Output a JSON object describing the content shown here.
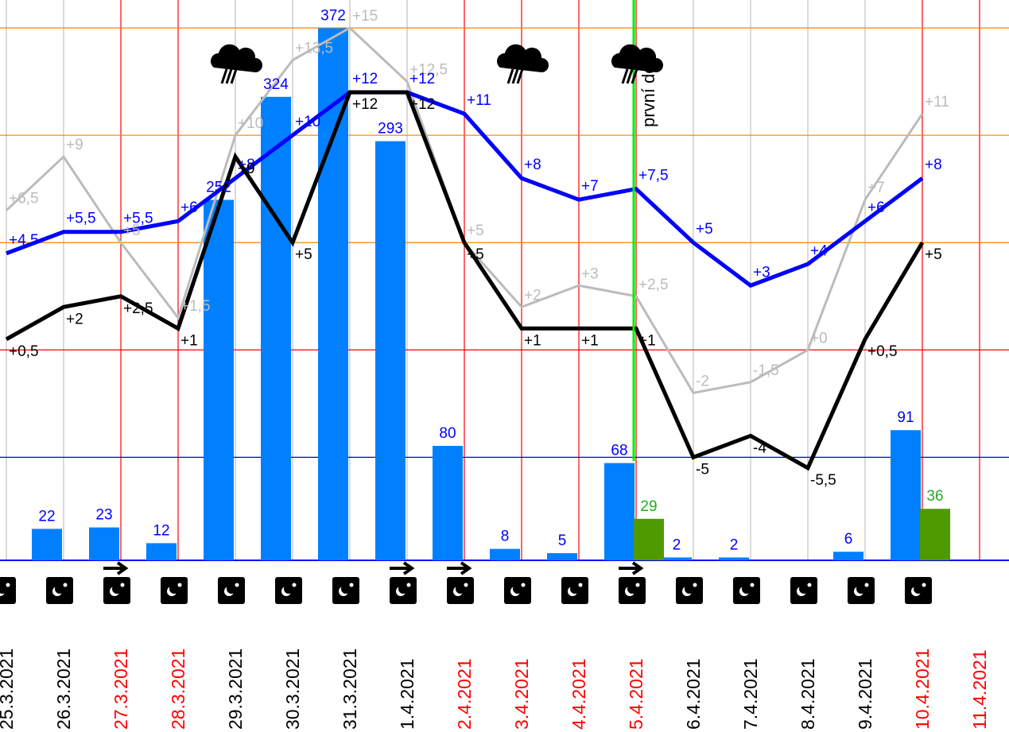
{
  "chart_data": {
    "type": "bar-line",
    "categories": [
      "25.3.2021",
      "26.3.2021",
      "27.3.2021",
      "28.3.2021",
      "29.3.2021",
      "30.3.2021",
      "31.3.2021",
      "1.4.2021",
      "2.4.2021",
      "3.4.2021",
      "4.4.2021",
      "5.4.2021",
      "6.4.2021",
      "7.4.2021",
      "8.4.2021",
      "9.4.2021",
      "10.4.2021",
      "11.4.2021"
    ],
    "category_colors": [
      "#000000",
      "#000000",
      "#ff0000",
      "#ff0000",
      "#000000",
      "#000000",
      "#000000",
      "#000000",
      "#ff0000",
      "#ff0000",
      "#ff0000",
      "#ff0000",
      "#000000",
      "#000000",
      "#000000",
      "#000000",
      "#ff0000",
      "#ff0000"
    ],
    "ylim": [
      -9.8,
      16.3
    ],
    "yticks": [
      -5,
      0,
      5,
      10,
      15
    ],
    "grid_colors": [
      "#0000ff",
      "#ff0000",
      "#ff8000",
      "#ff8000",
      "#ff8000"
    ],
    "y2lim": [
      0,
      391.7
    ],
    "series": [
      {
        "type": "bar",
        "axis": "y2",
        "color": "#0080ff",
        "label_color": "#0000ff",
        "offset": -1,
        "values": [
          null,
          22,
          23,
          12,
          252,
          324,
          372,
          293,
          80,
          8,
          5,
          68,
          2,
          2,
          null,
          6,
          91,
          null
        ]
      },
      {
        "type": "bar",
        "axis": "y2",
        "color": "#4e9a00",
        "label_color": "#22aa22",
        "offset": 0,
        "values": [
          null,
          null,
          null,
          null,
          null,
          null,
          null,
          null,
          null,
          null,
          null,
          29,
          null,
          null,
          null,
          null,
          36,
          null
        ]
      },
      {
        "type": "line",
        "color": "#bbbbbb",
        "width": 3,
        "label_dy": -14,
        "values": [
          6.5,
          9,
          5,
          1.5,
          10,
          13.5,
          15,
          12.5,
          5,
          2,
          3,
          2.5,
          -2,
          -1.5,
          0,
          7,
          11,
          null
        ],
        "value_labels": [
          "+6,5",
          "+9",
          "+5",
          "+1,5",
          "+10",
          "+13,5",
          "+15",
          "+12,5",
          "+5",
          "+2",
          "+3",
          "+2,5",
          "-2",
          "-1,5",
          "+0",
          "+7",
          "+11",
          null
        ]
      },
      {
        "type": "line",
        "color": "#0000ff",
        "width": 5,
        "label_dy": -16,
        "values": [
          4.5,
          5.5,
          5.5,
          6,
          8,
          10,
          12,
          12,
          11,
          8,
          7,
          7.5,
          5,
          3,
          4,
          6,
          8,
          null
        ],
        "value_labels": [
          "+4,5",
          "+5,5",
          "+5,5",
          "+6",
          "+8",
          "+10",
          "+12",
          "+12",
          "+11",
          "+8",
          "+7",
          "+7,5",
          "+5",
          "+3",
          "+4",
          "+6",
          "+8",
          null
        ]
      },
      {
        "type": "line",
        "color": "#000000",
        "width": 5,
        "label_dy": 16,
        "values": [
          0.5,
          2,
          2.5,
          1,
          9,
          5,
          12,
          12,
          5,
          1,
          1,
          1,
          -5,
          -4,
          -5.5,
          0.5,
          5,
          null
        ],
        "value_labels": [
          "+0,5",
          "+2",
          "+2,5",
          "+1",
          "+9",
          "+5",
          "+12",
          "+12",
          "+5",
          "+1",
          "+1",
          "+1",
          "-5",
          "-4",
          "-5,5",
          "+0,5",
          "+5",
          null
        ]
      }
    ],
    "annotation": {
      "text": "první den",
      "index": 11,
      "color": "#00ee00"
    }
  }
}
